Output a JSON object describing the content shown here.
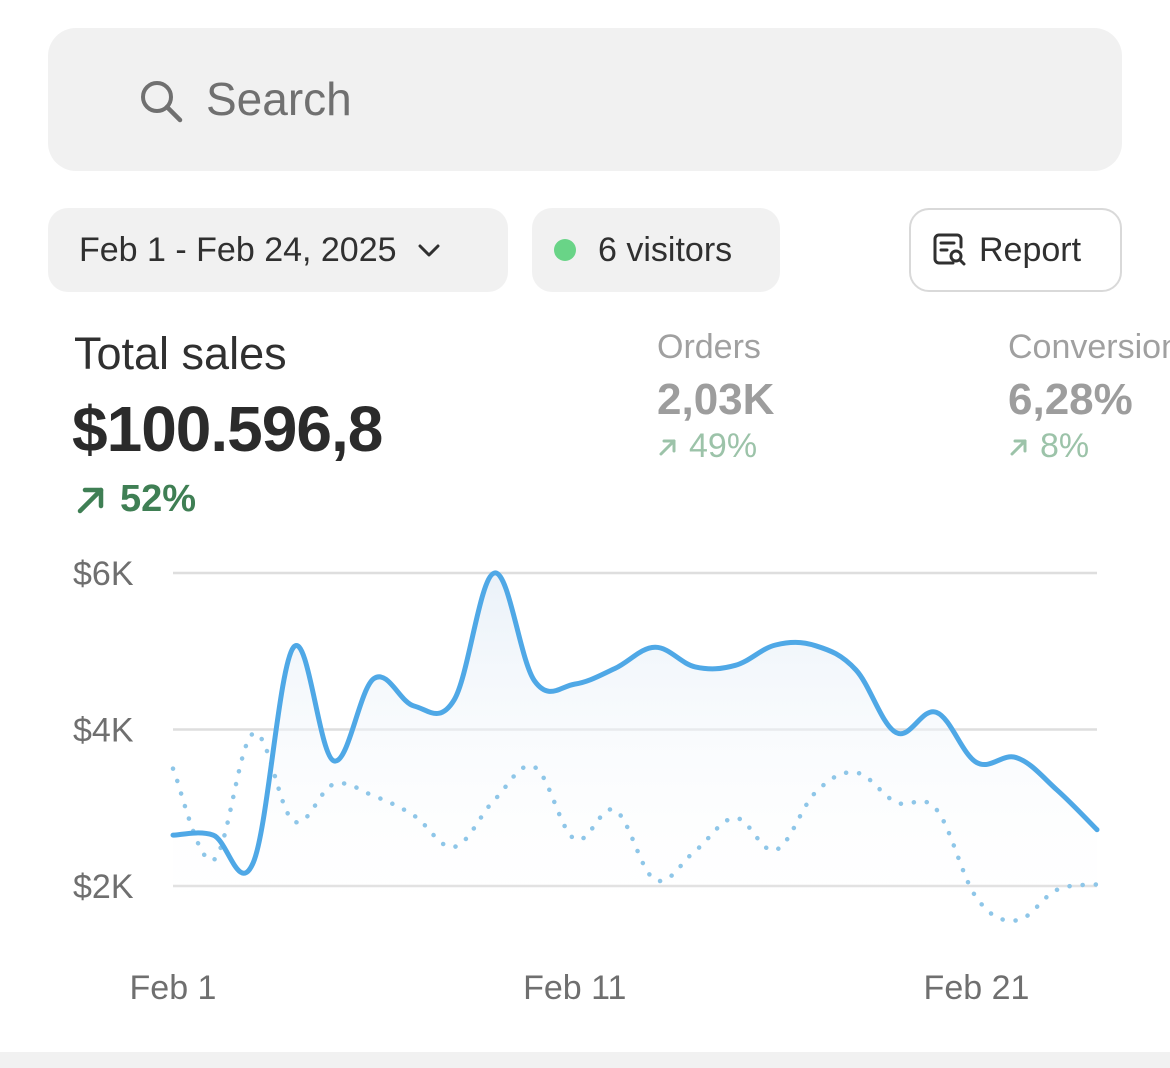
{
  "search": {
    "placeholder": "Search"
  },
  "filters": {
    "date_range": "Feb 1 - Feb 24, 2025",
    "visitors": "6 visitors",
    "report_label": "Report"
  },
  "metrics": {
    "total_sales": {
      "label": "Total sales",
      "value": "$100.596,8",
      "change": "52%"
    },
    "orders": {
      "label": "Orders",
      "value": "2,03K",
      "change": "49%"
    },
    "conversion": {
      "label": "Conversion",
      "value": "6,28%",
      "change": "8%"
    }
  },
  "colors": {
    "accent": "#4fa8e6",
    "positive": "#3f7f54",
    "live_dot": "#69d487"
  },
  "icons": {
    "search": "search-icon",
    "date_dropdown": "chevron-down-icon",
    "report": "report-icon",
    "trend": "trend-up-icon"
  },
  "chart_data": {
    "type": "line",
    "x_ticks": [
      "Feb 1",
      "Feb 11",
      "Feb 21"
    ],
    "y_ticks": [
      "$6K",
      "$4K",
      "$2K"
    ],
    "ylim": [
      2000,
      6000
    ],
    "grid": true,
    "x": [
      1,
      2,
      3,
      4,
      5,
      6,
      7,
      8,
      9,
      10,
      11,
      12,
      13,
      14,
      15,
      16,
      17,
      18,
      19,
      20,
      21,
      22,
      23,
      24
    ],
    "series": [
      {
        "style": "solid",
        "values": [
          2650,
          2650,
          2300,
          5050,
          3600,
          4650,
          4300,
          4380,
          6000,
          4620,
          4580,
          4780,
          5050,
          4800,
          4820,
          5080,
          5070,
          4760,
          3960,
          4220,
          3580,
          3640,
          3230,
          2720
        ]
      },
      {
        "style": "dotted",
        "values": [
          3500,
          2330,
          3950,
          2830,
          3300,
          3150,
          2900,
          2500,
          3100,
          3520,
          2600,
          2970,
          2080,
          2450,
          2870,
          2460,
          3200,
          3450,
          3070,
          2980,
          1850,
          1560,
          1950,
          2020
        ]
      }
    ]
  }
}
